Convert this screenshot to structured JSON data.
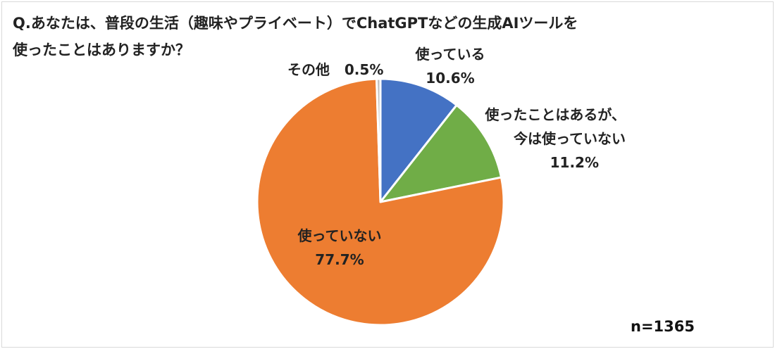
{
  "chart_data": {
    "type": "pie",
    "title_lines": [
      "Q.あなたは、普段の生活（趣味やプライベート）でChatGPTなどの生成AIツールを",
      "使ったことはありますか？"
    ],
    "slices": [
      {
        "label_lines": [
          "使っている"
        ],
        "value": 10.6,
        "value_text": "10.6%",
        "color": "#4472c4"
      },
      {
        "label_lines": [
          "使ったことはあるが、",
          "今は使っていない"
        ],
        "value": 11.2,
        "value_text": "11.2%",
        "color": "#70ad47"
      },
      {
        "label_lines": [
          "使っていない"
        ],
        "value": 77.7,
        "value_text": "77.7%",
        "color": "#ed7d31"
      },
      {
        "label_lines": [
          "その他"
        ],
        "value": 0.5,
        "value_text": "0.5%",
        "color": "#bfbfbf"
      }
    ],
    "sample_size": "n=1365"
  }
}
